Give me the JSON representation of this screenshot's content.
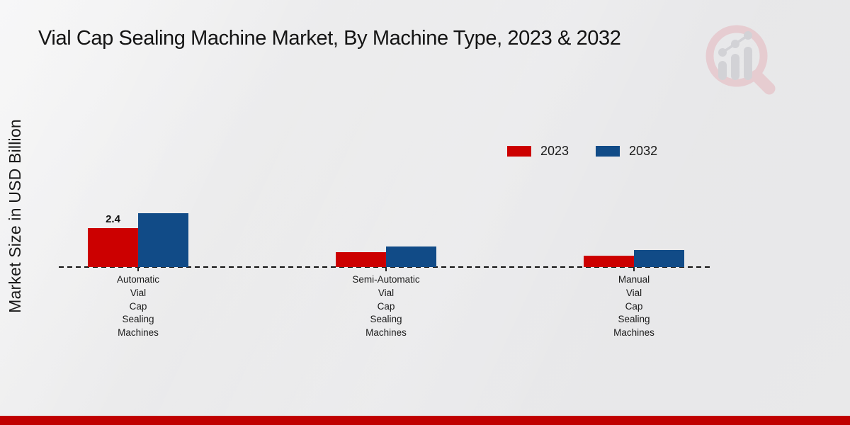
{
  "title": "Vial Cap Sealing Machine Market, By Machine Type, 2023 & 2032",
  "y_axis_label": "Market Size in USD Billion",
  "chart_data": {
    "type": "bar",
    "categories": [
      "Automatic Vial Cap Sealing Machines",
      "Semi-Automatic Vial Cap Sealing Machines",
      "Manual Vial Cap Sealing Machines"
    ],
    "series": [
      {
        "name": "2023",
        "color": "#cc0000",
        "values": [
          2.4,
          0.9,
          0.7
        ],
        "value_labels": [
          "2.4",
          "",
          ""
        ]
      },
      {
        "name": "2032",
        "color": "#114b87",
        "values": [
          3.3,
          1.25,
          1.05
        ],
        "value_labels": [
          "",
          "",
          ""
        ]
      }
    ],
    "title": "Vial Cap Sealing Machine Market, By Machine Type, 2023 & 2032",
    "xlabel": "",
    "ylabel": "Market Size in USD Billion",
    "ylim": [
      0,
      4
    ],
    "grid": false,
    "legend_position": "upper-right-inside",
    "baseline_style": "dashed",
    "y_axis_ticks_shown": false
  },
  "branding": {
    "footer_bar_color": "#c00000",
    "watermark_icon": "magnifier-bar-chart-logo",
    "watermark_ring_color": "#e6c6cb",
    "watermark_bars_color": "#cdcdd2"
  }
}
